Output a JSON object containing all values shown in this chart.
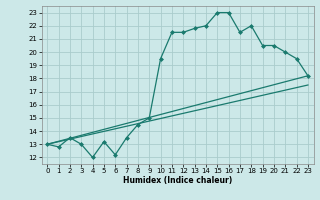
{
  "xlabel": "Humidex (Indice chaleur)",
  "bg_color": "#cce8e8",
  "grid_color": "#aacccc",
  "line_color": "#1a7a6e",
  "xlim": [
    -0.5,
    23.5
  ],
  "ylim": [
    11.5,
    23.5
  ],
  "xticks": [
    0,
    1,
    2,
    3,
    4,
    5,
    6,
    7,
    8,
    9,
    10,
    11,
    12,
    13,
    14,
    15,
    16,
    17,
    18,
    19,
    20,
    21,
    22,
    23
  ],
  "yticks": [
    12,
    13,
    14,
    15,
    16,
    17,
    18,
    19,
    20,
    21,
    22,
    23
  ],
  "line1_x": [
    0,
    1,
    2,
    3,
    4,
    5,
    6,
    7,
    8,
    9,
    10,
    11,
    12,
    13,
    14,
    15,
    16,
    17,
    18,
    19,
    20,
    21,
    22,
    23
  ],
  "line1_y": [
    13,
    12.8,
    13.5,
    13,
    12,
    13.2,
    12.2,
    13.5,
    14.5,
    15,
    19.5,
    21.5,
    21.5,
    21.8,
    22,
    23,
    23,
    21.5,
    22,
    20.5,
    20.5,
    20,
    19.5,
    18.2
  ],
  "line2_x": [
    0,
    23
  ],
  "line2_y": [
    13,
    18.2
  ],
  "line3_x": [
    0,
    23
  ],
  "line3_y": [
    13,
    17.5
  ]
}
